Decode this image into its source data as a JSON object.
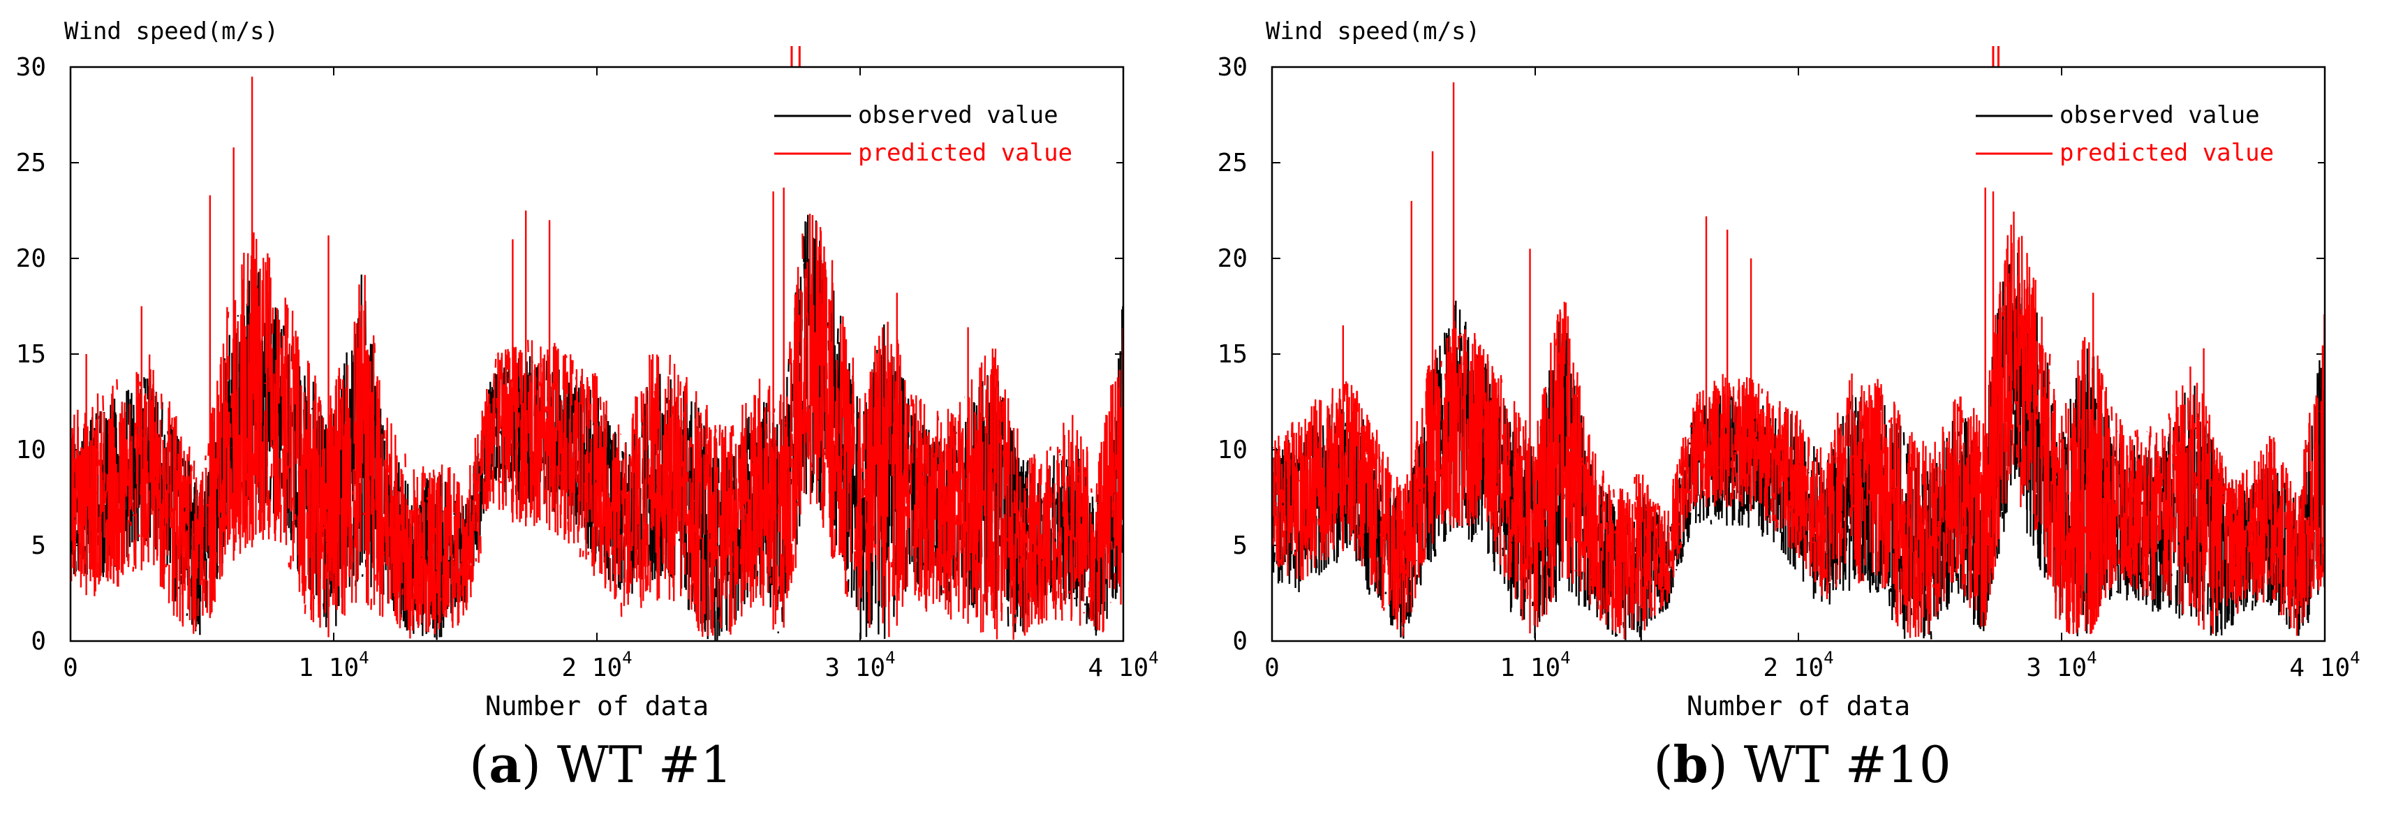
{
  "colors": {
    "observed": "#000000",
    "predicted": "#ff0000",
    "axis": "#000000",
    "background": "#ffffff"
  },
  "chart_data": [
    {
      "type": "line",
      "panel": "a",
      "caption_letter": "a",
      "caption_text": "WT #1",
      "ylabel": "Wind speed(m/s)",
      "xlabel": "Number of data",
      "xlim": [
        0,
        40000
      ],
      "ylim": [
        0,
        30
      ],
      "xticks": [
        {
          "value": 0,
          "base": "0",
          "exp": ""
        },
        {
          "value": 10000,
          "base": "1 10",
          "exp": "4"
        },
        {
          "value": 20000,
          "base": "2 10",
          "exp": "4"
        },
        {
          "value": 30000,
          "base": "3 10",
          "exp": "4"
        },
        {
          "value": 40000,
          "base": "4 10",
          "exp": "4"
        }
      ],
      "yticks": [
        "0",
        "5",
        "10",
        "15",
        "20",
        "25",
        "30"
      ],
      "legend": {
        "position": "top-right",
        "entries": [
          "observed value",
          "predicted value"
        ]
      },
      "series": [
        {
          "name": "observed value",
          "color": "#000000",
          "envelope_x": [
            0,
            1000,
            2000,
            3000,
            4000,
            5000,
            6000,
            7000,
            8000,
            9000,
            10000,
            11000,
            12000,
            13000,
            14000,
            15000,
            16000,
            17000,
            18000,
            19000,
            20000,
            21000,
            22000,
            23000,
            24000,
            25000,
            26000,
            27000,
            28000,
            29000,
            30000,
            31000,
            32000,
            33000,
            34000,
            35000,
            36000,
            37000,
            38000,
            39000,
            40000
          ],
          "envelope_low": [
            3.5,
            3,
            4,
            5,
            2,
            0,
            5,
            6,
            6,
            2,
            0,
            3,
            2,
            0,
            0,
            2,
            8,
            7,
            7,
            6,
            4,
            2,
            3,
            3,
            0,
            0,
            3,
            0,
            8,
            5,
            0,
            0,
            3,
            2,
            2,
            1,
            0,
            2,
            2,
            0,
            3
          ],
          "envelope_high": [
            11,
            12,
            13,
            14,
            11,
            8,
            16,
            20,
            17,
            14,
            12,
            20,
            11,
            8,
            9,
            7,
            14,
            15,
            15,
            14,
            13,
            10,
            14,
            14,
            12,
            10,
            13,
            12,
            23.5,
            19,
            12,
            17,
            12,
            11,
            12,
            15,
            10,
            9,
            11,
            8,
            18
          ]
        },
        {
          "name": "predicted value",
          "color": "#ff0000",
          "envelope_x": [
            0,
            1000,
            2000,
            3000,
            4000,
            5000,
            6000,
            7000,
            8000,
            9000,
            10000,
            11000,
            12000,
            13000,
            14000,
            15000,
            16000,
            17000,
            18000,
            19000,
            20000,
            21000,
            22000,
            23000,
            24000,
            25000,
            26000,
            27000,
            28000,
            29000,
            30000,
            31000,
            32000,
            33000,
            34000,
            35000,
            36000,
            37000,
            38000,
            39000,
            40000
          ],
          "envelope_low": [
            3,
            2,
            3,
            4,
            1,
            0,
            4,
            5,
            5,
            1,
            0,
            2,
            1,
            0,
            0,
            1,
            7,
            6,
            6,
            5,
            3,
            1,
            2,
            2,
            0,
            0,
            2,
            0,
            7,
            4,
            0,
            0,
            2,
            1,
            1,
            0,
            0,
            1,
            1,
            0,
            2
          ],
          "envelope_high": [
            12,
            13,
            14,
            15,
            12,
            9,
            18,
            22,
            19,
            15,
            13,
            21,
            12,
            9,
            10,
            8,
            15,
            16,
            16,
            15,
            14,
            11,
            15,
            15,
            13,
            11,
            14,
            13,
            23.5,
            20,
            13,
            18,
            13,
            12,
            13,
            16,
            11,
            10,
            12,
            9,
            18
          ],
          "spikes": [
            [
              600,
              15
            ],
            [
              2700,
              17.5
            ],
            [
              5300,
              23.3
            ],
            [
              6200,
              25.8
            ],
            [
              6900,
              29.5
            ],
            [
              9800,
              21.2
            ],
            [
              16800,
              21
            ],
            [
              17300,
              22.5
            ],
            [
              18200,
              22
            ],
            [
              26700,
              23.5
            ],
            [
              27100,
              23.7
            ],
            [
              31400,
              18.2
            ],
            [
              34100,
              16.4
            ]
          ],
          "top_markers": [
            27400,
            27700
          ]
        }
      ]
    },
    {
      "type": "line",
      "panel": "b",
      "caption_letter": "b",
      "caption_text": "WT #10",
      "ylabel": "Wind speed(m/s)",
      "xlabel": "Number of data",
      "xlim": [
        0,
        40000
      ],
      "ylim": [
        0,
        30
      ],
      "xticks": [
        {
          "value": 0,
          "base": "0",
          "exp": ""
        },
        {
          "value": 10000,
          "base": "1 10",
          "exp": "4"
        },
        {
          "value": 20000,
          "base": "2 10",
          "exp": "4"
        },
        {
          "value": 30000,
          "base": "3 10",
          "exp": "4"
        },
        {
          "value": 40000,
          "base": "4 10",
          "exp": "4"
        }
      ],
      "yticks": [
        "0",
        "5",
        "10",
        "15",
        "20",
        "25",
        "30"
      ],
      "legend": {
        "position": "top-right",
        "entries": [
          "observed value",
          "predicted value"
        ]
      },
      "series": [
        {
          "name": "observed value",
          "color": "#000000",
          "envelope_x": [
            0,
            1000,
            2000,
            3000,
            4000,
            5000,
            6000,
            7000,
            8000,
            9000,
            10000,
            11000,
            12000,
            13000,
            14000,
            15000,
            16000,
            17000,
            18000,
            19000,
            20000,
            21000,
            22000,
            23000,
            24000,
            25000,
            26000,
            27000,
            28000,
            29000,
            30000,
            31000,
            32000,
            33000,
            34000,
            35000,
            36000,
            37000,
            38000,
            39000,
            40000
          ],
          "envelope_low": [
            3,
            2.5,
            3.5,
            4.5,
            1.5,
            0,
            4,
            5,
            5,
            1.5,
            0,
            2.5,
            1.5,
            0,
            0,
            1.5,
            6,
            6,
            6,
            5,
            3,
            1.5,
            2.5,
            2.5,
            0,
            0,
            2.5,
            0,
            7,
            4.5,
            0,
            0,
            2.5,
            1.5,
            1.5,
            0.5,
            0,
            1.5,
            1.5,
            0,
            2.5
          ],
          "envelope_high": [
            10,
            11,
            12,
            13,
            10,
            7,
            14,
            18,
            15,
            12,
            10,
            18,
            10,
            7,
            8,
            6,
            12,
            13,
            13,
            12,
            12,
            9,
            13,
            13,
            11,
            9,
            12,
            11,
            22,
            18,
            11,
            16,
            11,
            10,
            11,
            14,
            9,
            8,
            10,
            7,
            17
          ]
        },
        {
          "name": "predicted value",
          "color": "#ff0000",
          "envelope_x": [
            0,
            1000,
            2000,
            3000,
            4000,
            5000,
            6000,
            7000,
            8000,
            9000,
            10000,
            11000,
            12000,
            13000,
            14000,
            15000,
            16000,
            17000,
            18000,
            19000,
            20000,
            21000,
            22000,
            23000,
            24000,
            25000,
            26000,
            27000,
            28000,
            29000,
            30000,
            31000,
            32000,
            33000,
            34000,
            35000,
            36000,
            37000,
            38000,
            39000,
            40000
          ],
          "envelope_low": [
            4,
            3,
            4,
            5,
            2,
            0,
            5,
            6,
            6,
            2,
            0,
            3,
            2,
            0,
            0,
            2,
            7,
            7,
            7,
            6,
            4,
            2,
            3,
            3,
            0,
            0,
            3,
            0,
            8,
            5,
            0,
            0,
            3,
            2,
            2,
            1,
            0,
            2,
            2,
            0,
            3
          ],
          "envelope_high": [
            11,
            12,
            13,
            14,
            11,
            8,
            15,
            17,
            16,
            13,
            11,
            19,
            11,
            8,
            9,
            7,
            13,
            14,
            14,
            13,
            12,
            10,
            14,
            14,
            12,
            10,
            13,
            12,
            23.5,
            19,
            12,
            17,
            12,
            11,
            12,
            15,
            10,
            9,
            11,
            8,
            18
          ],
          "spikes": [
            [
              600,
              11
            ],
            [
              2700,
              16.5
            ],
            [
              5300,
              23
            ],
            [
              6100,
              25.6
            ],
            [
              6900,
              29.2
            ],
            [
              9800,
              20.5
            ],
            [
              16500,
              22.2
            ],
            [
              17300,
              21.5
            ],
            [
              18200,
              20
            ],
            [
              27100,
              23.7
            ],
            [
              27400,
              23.5
            ],
            [
              31200,
              18.2
            ],
            [
              35400,
              15.3
            ]
          ],
          "top_markers": [
            27400,
            27600
          ]
        }
      ]
    }
  ]
}
